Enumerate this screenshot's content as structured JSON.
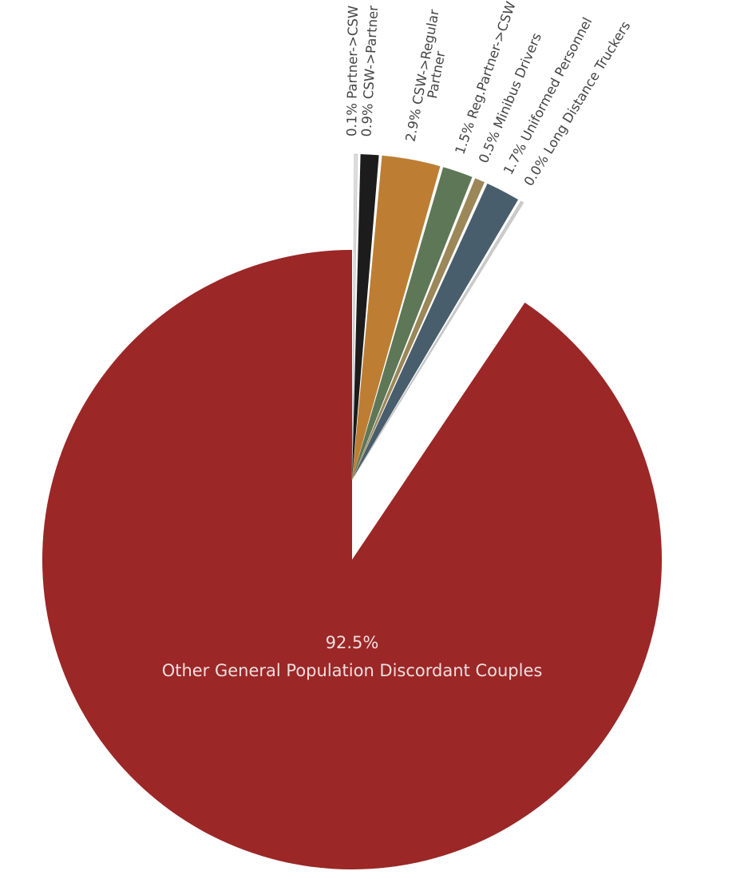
{
  "chart_data": {
    "type": "pie",
    "series": [
      {
        "label": "Other General Population Discordant Couples",
        "percent_label": "92.5%",
        "value": 92.5,
        "color": "#9b2727",
        "exploded": false
      },
      {
        "label": "Partner->CSW",
        "percent_label": "0.1%",
        "value": 0.1,
        "color": "#dddddd",
        "exploded": true
      },
      {
        "label": "CSW->Partner",
        "percent_label": "0.9%",
        "value": 0.9,
        "color": "#1c1c1c",
        "exploded": true
      },
      {
        "label": "CSW->Regular Partner",
        "label_lines": [
          "CSW->Regular",
          "Partner"
        ],
        "percent_label": "2.9%",
        "value": 2.9,
        "color": "#bd7e33",
        "exploded": true
      },
      {
        "label": "Reg.Partner->CSW",
        "percent_label": "1.5%",
        "value": 1.5,
        "color": "#5e7757",
        "exploded": true
      },
      {
        "label": "Minibus Drivers",
        "percent_label": "0.5%",
        "value": 0.5,
        "color": "#9b8758",
        "exploded": true
      },
      {
        "label": "Uniformed Personnel",
        "percent_label": "1.7%",
        "value": 1.7,
        "color": "#485e6c",
        "exploded": true
      },
      {
        "label": "Long Distance Truckers",
        "percent_label": "0.0%",
        "value": 0.0,
        "color": "#cccccc",
        "exploded": true
      }
    ],
    "start_angle": "12 o'clock",
    "direction": "clockwise",
    "legend": "none"
  }
}
